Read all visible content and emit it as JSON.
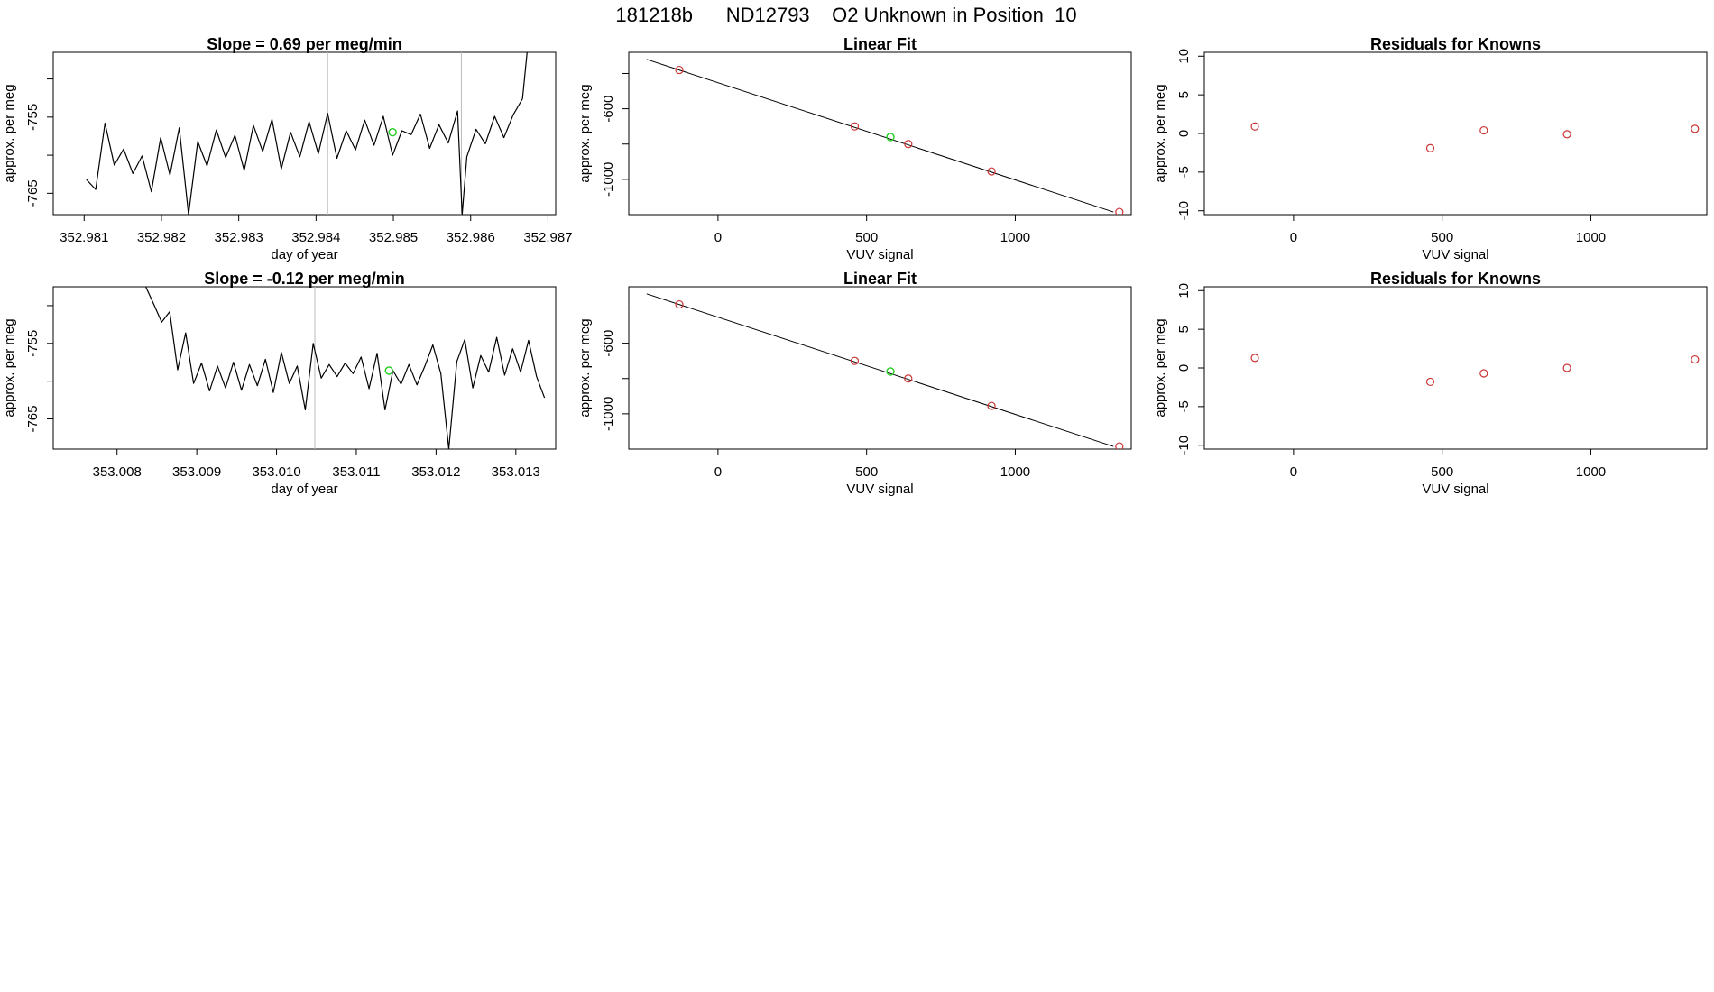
{
  "page_title": "181218b      ND12793    O2 Unknown in Position  10",
  "colors": {
    "line": "#000000",
    "known": "#cd3333",
    "unknown": "#22cc22",
    "marker": "#bbbbbb",
    "frame": "#000000"
  },
  "chart_data": [
    {
      "type": "line",
      "title": "Slope =  0.69  per meg/min",
      "xlabel": "day of year",
      "ylabel": "approx. per meg",
      "xlim": [
        352.9806,
        352.9871
      ],
      "ylim": [
        -767.8,
        -746.5
      ],
      "xticks": [
        "352.981",
        "352.982",
        "352.983",
        "352.984",
        "352.985",
        "352.986",
        "352.987"
      ],
      "yticks": [
        "-755",
        "-765"
      ],
      "ytick_values": [
        -750,
        -755,
        -760,
        -765
      ],
      "vlines": [
        352.98415,
        352.98588
      ],
      "series": [
        {
          "name": "trace",
          "x": [
            352.98103,
            352.98115,
            352.98127,
            352.98139,
            352.98151,
            352.98163,
            352.98175,
            352.98187,
            352.98199,
            352.98211,
            352.98223,
            352.98235,
            352.98247,
            352.98259,
            352.98271,
            352.98283,
            352.98295,
            352.98307,
            352.98319,
            352.98331,
            352.98343,
            352.98355,
            352.98367,
            352.98379,
            352.98391,
            352.98403,
            352.98415,
            352.98427,
            352.98439,
            352.98451,
            352.98463,
            352.98475,
            352.98487,
            352.98499,
            352.98511,
            352.98523,
            352.98535,
            352.98547,
            352.98559,
            352.98571,
            352.98583,
            352.98589,
            352.98595,
            352.98607,
            352.98619,
            352.98631,
            352.98643,
            352.98655,
            352.98667,
            352.98673
          ],
          "values": [
            -763.2,
            -764.5,
            -755.8,
            -761.3,
            -759.2,
            -762.4,
            -760.1,
            -764.8,
            -757.7,
            -762.6,
            -756.4,
            -767.8,
            -758.2,
            -761.4,
            -756.7,
            -760.3,
            -757.4,
            -762.0,
            -756.1,
            -759.5,
            -755.3,
            -761.8,
            -757.0,
            -760.2,
            -755.6,
            -759.8,
            -754.5,
            -760.4,
            -756.8,
            -759.3,
            -755.4,
            -758.7,
            -754.9,
            -760.0,
            -756.8,
            -757.3,
            -754.6,
            -759.1,
            -756.0,
            -758.4,
            -754.2,
            -767.8,
            -760.2,
            -756.6,
            -758.5,
            -754.9,
            -757.7,
            -754.7,
            -752.6,
            -746.5
          ]
        }
      ],
      "unknown_points": [
        {
          "x": 352.98499,
          "y": -757.0
        }
      ]
    },
    {
      "type": "scatter",
      "title": "Linear Fit",
      "xlabel": "VUV signal",
      "ylabel": "approx. per meg",
      "xlim": [
        -300,
        1390
      ],
      "ylim": [
        -1200,
        -280
      ],
      "xticks": [
        "0",
        "500",
        "1000"
      ],
      "xtick_values": [
        0,
        500,
        1000
      ],
      "yticks": [
        "-600",
        "-1000"
      ],
      "ytick_values": [
        -400,
        -600,
        -800,
        -1000
      ],
      "fit_line": {
        "x": [
          -240,
          1330
        ],
        "y": [
          -320,
          -1185
        ]
      },
      "series": [
        {
          "name": "knowns",
          "x": [
            -130,
            460,
            640,
            920,
            1350
          ],
          "y": [
            -380,
            -700,
            -800,
            -955,
            -1185
          ]
        }
      ],
      "unknown_points": [
        {
          "x": 580,
          "y": -760
        }
      ]
    },
    {
      "type": "scatter",
      "title": "Residuals for Knowns",
      "xlabel": "VUV signal",
      "ylabel": "approx. per meg",
      "xlim": [
        -300,
        1390
      ],
      "ylim": [
        -10.5,
        10.5
      ],
      "xticks": [
        "0",
        "500",
        "1000"
      ],
      "xtick_values": [
        0,
        500,
        1000
      ],
      "yticks": [
        "10",
        "5",
        "0",
        "-5",
        "-10"
      ],
      "ytick_values": [
        10,
        5,
        0,
        -5,
        -10
      ],
      "series": [
        {
          "name": "residuals",
          "x": [
            -130,
            460,
            640,
            920,
            1350
          ],
          "y": [
            0.9,
            -1.9,
            0.4,
            -0.1,
            0.6
          ]
        }
      ]
    },
    {
      "type": "line",
      "title": "Slope =  -0.12  per meg/min",
      "xlabel": "day of year",
      "ylabel": "approx. per meg",
      "xlim": [
        353.0072,
        353.0135
      ],
      "ylim": [
        -769.0,
        -747.5
      ],
      "xticks": [
        "353.008",
        "353.009",
        "353.010",
        "353.011",
        "353.012",
        "353.013"
      ],
      "yticks": [
        "-755",
        "-765"
      ],
      "ytick_values": [
        -750,
        -755,
        -760,
        -765
      ],
      "vlines": [
        353.01048,
        353.01225
      ],
      "series": [
        {
          "name": "trace",
          "x": [
            353.00836,
            353.00846,
            353.00856,
            353.00866,
            353.00876,
            353.00886,
            353.00896,
            353.00906,
            353.00916,
            353.00926,
            353.00936,
            353.00946,
            353.00956,
            353.00966,
            353.00976,
            353.00986,
            353.00996,
            353.01006,
            353.01016,
            353.01026,
            353.01036,
            353.01046,
            353.01056,
            353.01066,
            353.01076,
            353.01086,
            353.01096,
            353.01106,
            353.01116,
            353.01126,
            353.01136,
            353.01146,
            353.01156,
            353.01166,
            353.01176,
            353.01186,
            353.01196,
            353.01206,
            353.01216,
            353.01226,
            353.01236,
            353.01246,
            353.01256,
            353.01266,
            353.01276,
            353.01286,
            353.01296,
            353.01306,
            353.01316,
            353.01326,
            353.01336
          ],
          "values": [
            -747.5,
            -749.8,
            -752.2,
            -750.8,
            -758.5,
            -753.6,
            -760.3,
            -757.6,
            -761.3,
            -758.0,
            -760.9,
            -757.5,
            -761.2,
            -757.8,
            -760.6,
            -757.1,
            -761.5,
            -756.2,
            -760.3,
            -758.0,
            -763.8,
            -755.0,
            -759.6,
            -757.8,
            -759.4,
            -757.6,
            -759.0,
            -756.8,
            -761.0,
            -756.3,
            -763.8,
            -758.6,
            -760.4,
            -757.8,
            -760.5,
            -758.0,
            -755.2,
            -759.0,
            -769.0,
            -757.4,
            -754.5,
            -760.9,
            -756.6,
            -758.8,
            -754.2,
            -759.2,
            -755.7,
            -758.8,
            -754.6,
            -759.4,
            -762.2
          ]
        }
      ],
      "unknown_points": [
        {
          "x": 353.01141,
          "y": -758.6
        }
      ]
    },
    {
      "type": "scatter",
      "title": "Linear Fit",
      "xlabel": "VUV signal",
      "ylabel": "approx. per meg",
      "xlim": [
        -300,
        1390
      ],
      "ylim": [
        -1200,
        -280
      ],
      "xticks": [
        "0",
        "500",
        "1000"
      ],
      "xtick_values": [
        0,
        500,
        1000
      ],
      "yticks": [
        "-600",
        "-1000"
      ],
      "ytick_values": [
        -400,
        -600,
        -800,
        -1000
      ],
      "fit_line": {
        "x": [
          -240,
          1330
        ],
        "y": [
          -320,
          -1185
        ]
      },
      "series": [
        {
          "name": "knowns",
          "x": [
            -130,
            460,
            640,
            920,
            1350
          ],
          "y": [
            -380,
            -700,
            -800,
            -955,
            -1185
          ]
        }
      ],
      "unknown_points": [
        {
          "x": 580,
          "y": -760
        }
      ]
    },
    {
      "type": "scatter",
      "title": "Residuals for Knowns",
      "xlabel": "VUV signal",
      "ylabel": "approx. per meg",
      "xlim": [
        -300,
        1390
      ],
      "ylim": [
        -10.5,
        10.5
      ],
      "xticks": [
        "0",
        "500",
        "1000"
      ],
      "xtick_values": [
        0,
        500,
        1000
      ],
      "yticks": [
        "10",
        "5",
        "0",
        "-5",
        "-10"
      ],
      "ytick_values": [
        10,
        5,
        0,
        -5,
        -10
      ],
      "series": [
        {
          "name": "residuals",
          "x": [
            -130,
            460,
            640,
            920,
            1350
          ],
          "y": [
            1.3,
            -1.8,
            -0.7,
            0.0,
            1.1
          ]
        }
      ]
    }
  ]
}
